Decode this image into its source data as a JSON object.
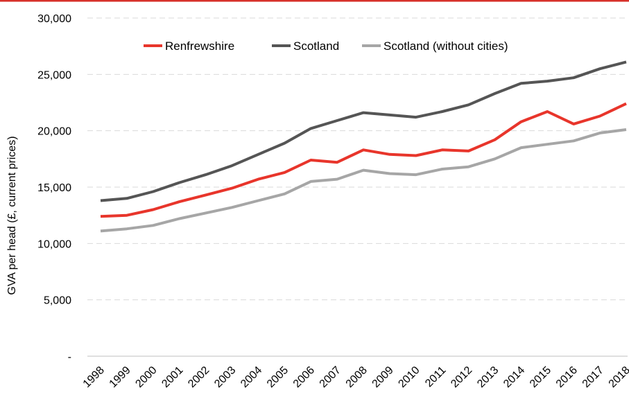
{
  "top_rule_color": "#d7312a",
  "chart_data": {
    "type": "line",
    "title": "",
    "xlabel": "",
    "ylabel": "GVA per head (£, current prices)",
    "ylim": [
      0,
      30000
    ],
    "yticks": [
      0,
      5000,
      10000,
      15000,
      20000,
      25000,
      30000
    ],
    "ytick_labels": [
      "-",
      "5,000",
      "10,000",
      "15,000",
      "20,000",
      "25,000",
      "30,000"
    ],
    "grid": true,
    "legend_position": "top",
    "categories": [
      "1998",
      "1999",
      "2000",
      "2001",
      "2002",
      "2003",
      "2004",
      "2005",
      "2006",
      "2007",
      "2008",
      "2009",
      "2010",
      "2011",
      "2012",
      "2013",
      "2014",
      "2015",
      "2016",
      "2017",
      "2018"
    ],
    "series": [
      {
        "name": "Renfrewshire",
        "color": "#e8352b",
        "values": [
          12400,
          12500,
          13000,
          13700,
          14300,
          14900,
          15700,
          16300,
          17400,
          17200,
          18300,
          17900,
          17800,
          18300,
          18200,
          19200,
          20800,
          21700,
          20600,
          21300,
          22400
        ]
      },
      {
        "name": "Scotland",
        "color": "#555555",
        "values": [
          13800,
          14000,
          14600,
          15400,
          16100,
          16900,
          17900,
          18900,
          20200,
          20900,
          21600,
          21400,
          21200,
          21700,
          22300,
          23300,
          24200,
          24400,
          24700,
          25500,
          26100
        ]
      },
      {
        "name": "Scotland (without cities)",
        "color": "#a6a6a6",
        "values": [
          11100,
          11300,
          11600,
          12200,
          12700,
          13200,
          13800,
          14400,
          15500,
          15700,
          16500,
          16200,
          16100,
          16600,
          16800,
          17500,
          18500,
          18800,
          19100,
          19800,
          20100
        ]
      }
    ]
  }
}
